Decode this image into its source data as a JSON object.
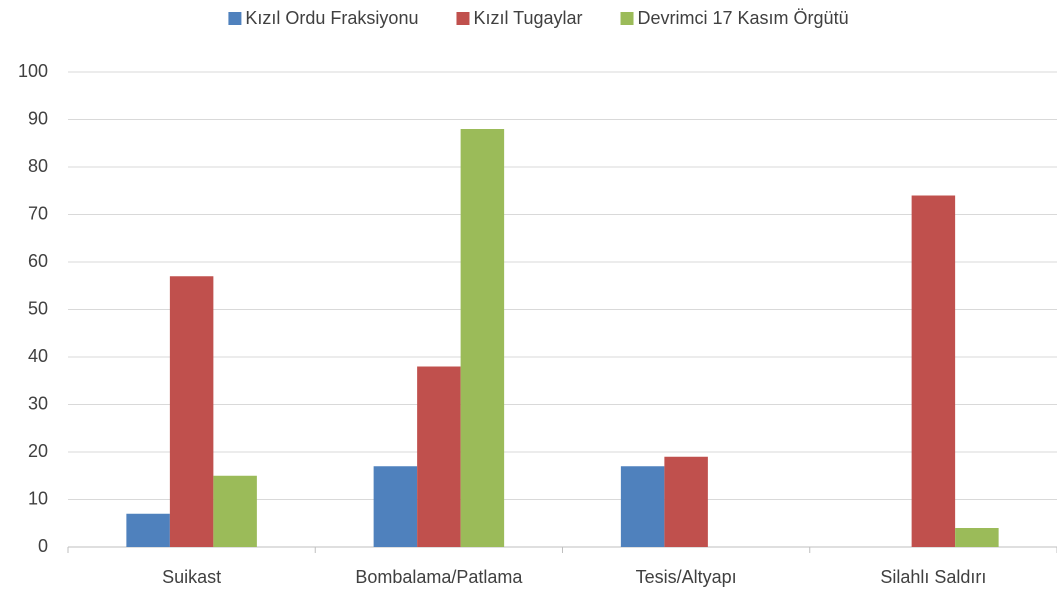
{
  "chart_data": {
    "type": "bar",
    "categories": [
      "Suikast",
      "Bombalama/Patlama",
      "Tesis/Altyapı",
      "Silahlı Saldırı"
    ],
    "series": [
      {
        "name": "Kızıl Ordu Fraksiyonu",
        "color": "#4f81bd",
        "values": [
          7,
          17,
          17,
          0
        ]
      },
      {
        "name": "Kızıl Tugaylar",
        "color": "#c0504d",
        "values": [
          57,
          38,
          19,
          74
        ]
      },
      {
        "name": "Devrimci 17 Kasım Örgütü",
        "color": "#9bbb59",
        "values": [
          15,
          88,
          0,
          4
        ]
      }
    ],
    "ylim": [
      0,
      100
    ],
    "yticks": [
      0,
      10,
      20,
      30,
      40,
      50,
      60,
      70,
      80,
      90,
      100
    ],
    "grid": true,
    "legend": "top"
  }
}
